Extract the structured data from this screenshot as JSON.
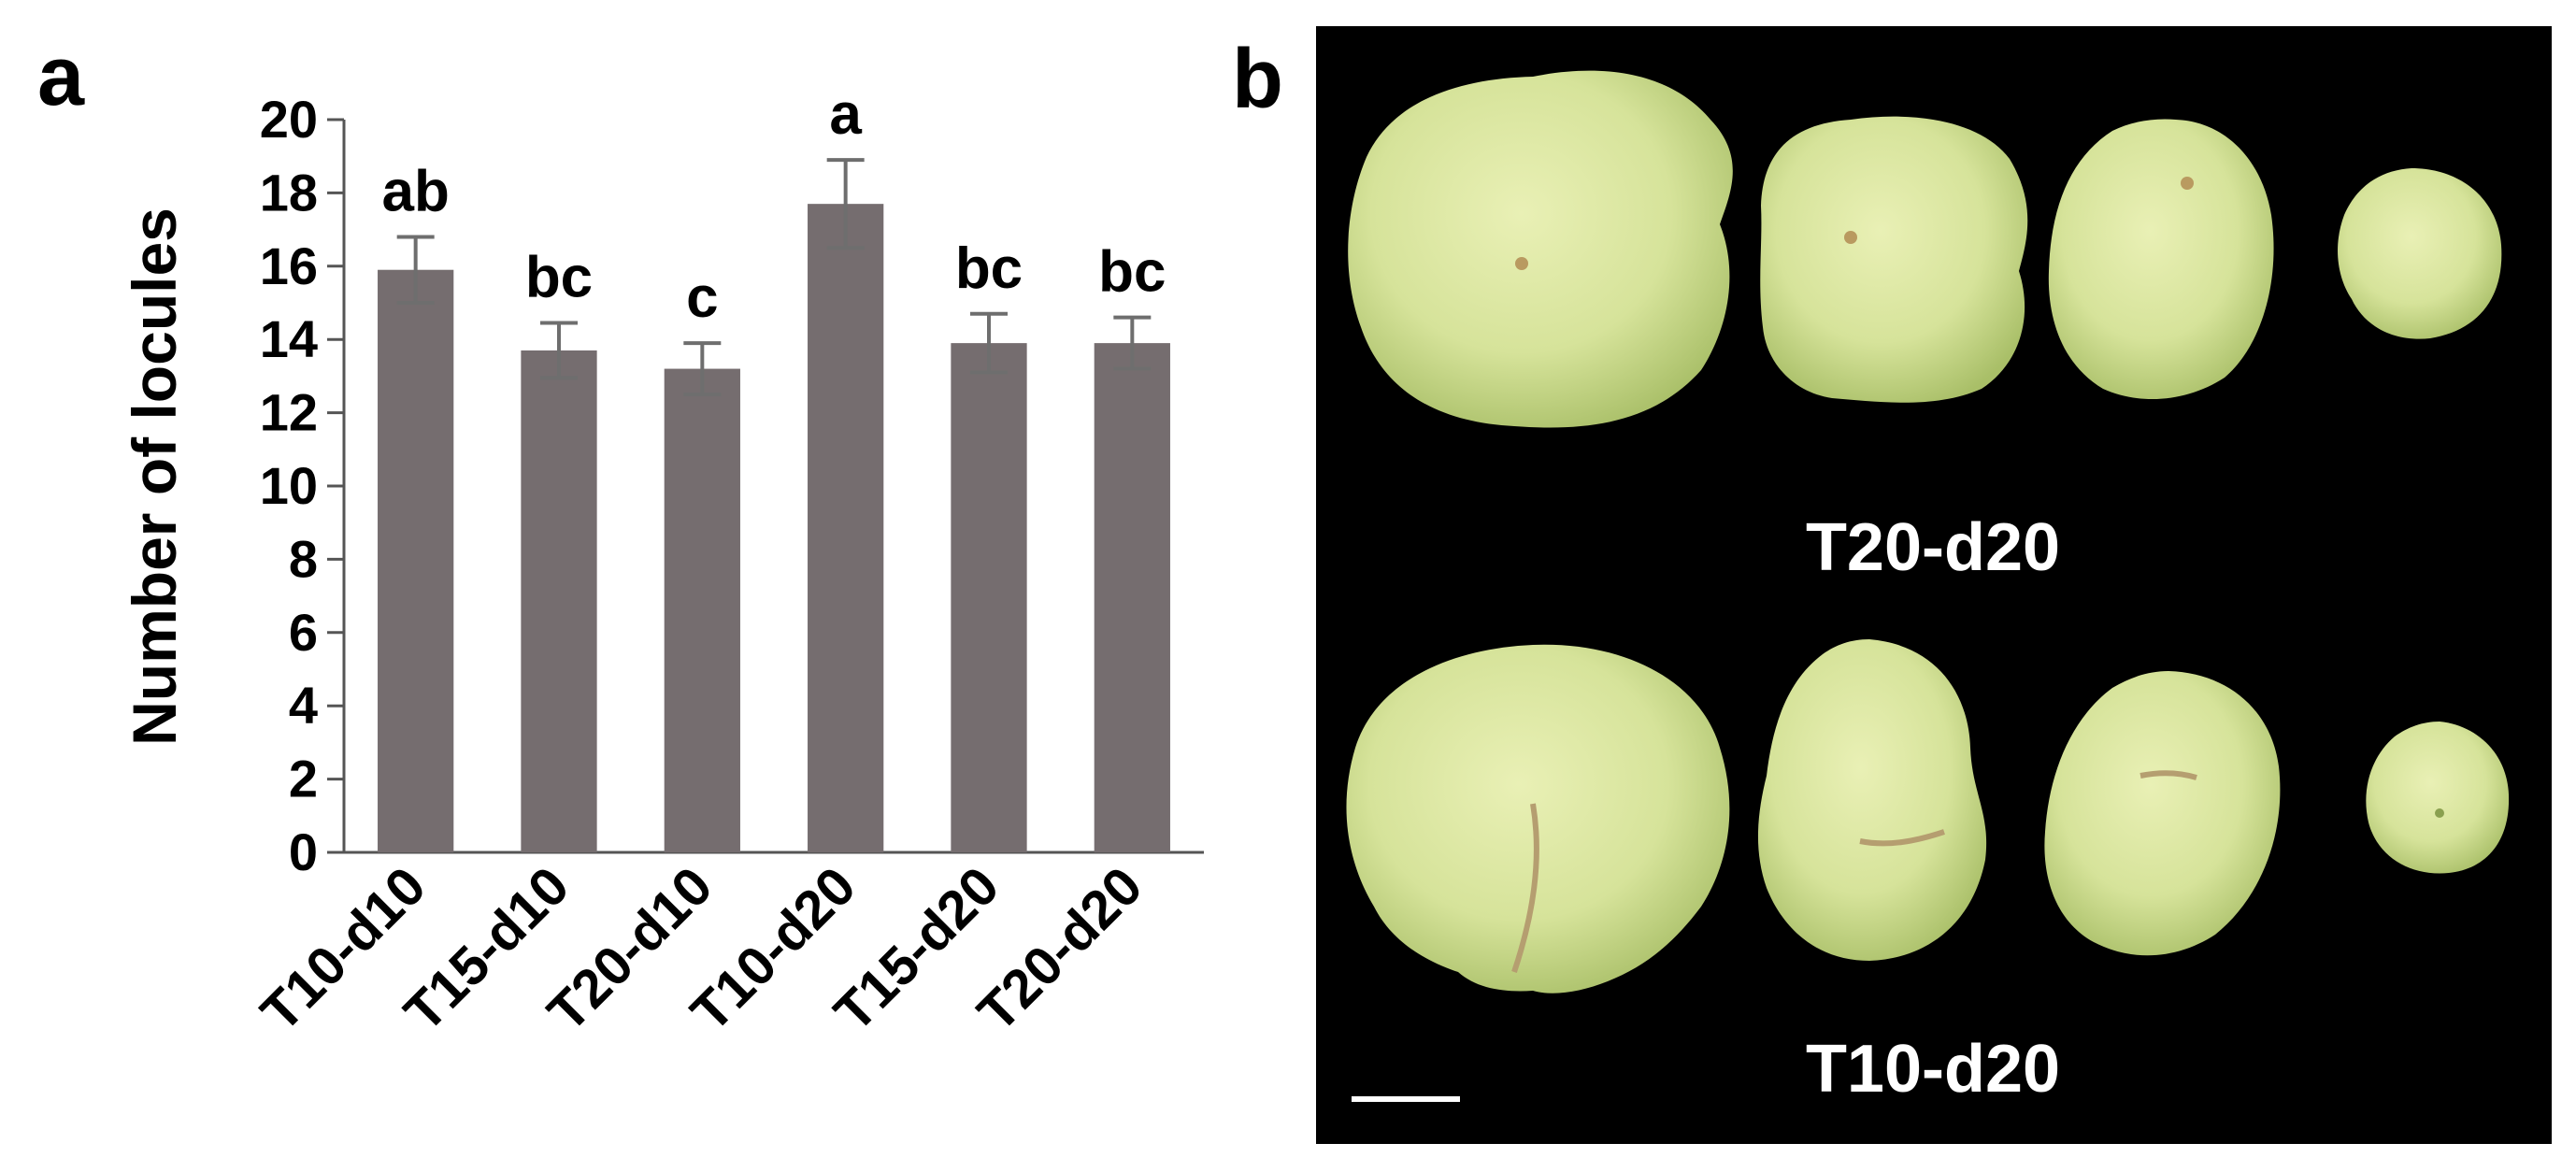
{
  "panels": {
    "a_label": "a",
    "b_label": "b"
  },
  "chart_data": {
    "type": "bar",
    "title": "",
    "xlabel": "",
    "ylabel": "Number of locules",
    "ylim": [
      0,
      20
    ],
    "yticks": [
      0,
      2,
      4,
      6,
      8,
      10,
      12,
      14,
      16,
      18,
      20
    ],
    "categories": [
      "T10-d10",
      "T15-d10",
      "T20-d10",
      "T10-d20",
      "T15-d20",
      "T20-d20"
    ],
    "values": [
      15.9,
      13.7,
      13.2,
      17.7,
      13.9,
      13.9
    ],
    "errors": [
      0.9,
      0.75,
      0.7,
      1.2,
      0.8,
      0.7
    ],
    "significance": [
      "ab",
      "bc",
      "c",
      "a",
      "bc",
      "bc"
    ],
    "bar_color": "#756d6f",
    "error_color": "#6e6e6e",
    "grid": false
  },
  "photo": {
    "background": "#000000",
    "fruit_color": "#dbe79f",
    "top_row_label": "T20-d20",
    "bottom_row_label": "T10-d20"
  }
}
